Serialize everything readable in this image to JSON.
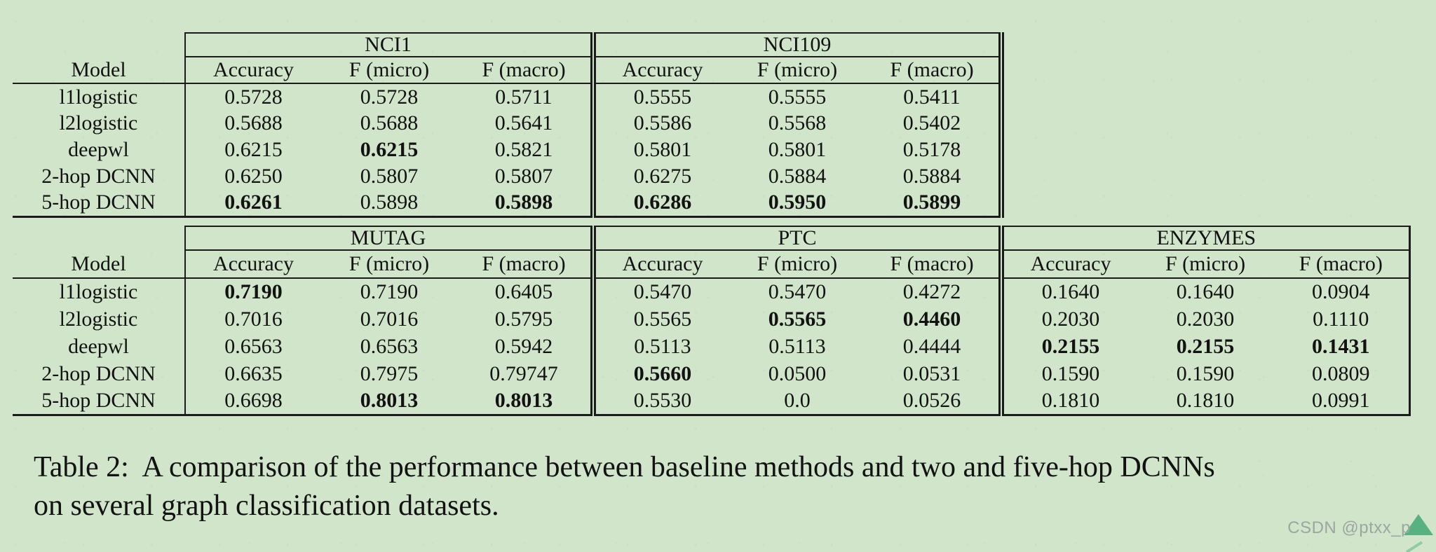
{
  "page": {
    "background_color": "#d1e5cb",
    "rule_color": "#1b1b1b",
    "text_color": "#121212"
  },
  "table": {
    "model_header": "Model",
    "stat_headers": [
      "Accuracy",
      "F (micro)",
      "F (macro)"
    ],
    "models": [
      "l1logistic",
      "l2logistic",
      "deepwl",
      "2-hop DCNN",
      "5-hop DCNN"
    ],
    "top_sections": [
      {
        "name": "NCI1",
        "values": [
          [
            "0.5728",
            "0.5728",
            "0.5711"
          ],
          [
            "0.5688",
            "0.5688",
            "0.5641"
          ],
          [
            "0.6215",
            "0.6215",
            "0.5821"
          ],
          [
            "0.6250",
            "0.5807",
            "0.5807"
          ],
          [
            "0.6261",
            "0.5898",
            "0.5898"
          ]
        ],
        "bold": [
          [
            false,
            false,
            false
          ],
          [
            false,
            false,
            false
          ],
          [
            false,
            true,
            false
          ],
          [
            false,
            false,
            false
          ],
          [
            true,
            false,
            true
          ]
        ]
      },
      {
        "name": "NCI109",
        "values": [
          [
            "0.5555",
            "0.5555",
            "0.5411"
          ],
          [
            "0.5586",
            "0.5568",
            "0.5402"
          ],
          [
            "0.5801",
            "0.5801",
            "0.5178"
          ],
          [
            "0.6275",
            "0.5884",
            "0.5884"
          ],
          [
            "0.6286",
            "0.5950",
            "0.5899"
          ]
        ],
        "bold": [
          [
            false,
            false,
            false
          ],
          [
            false,
            false,
            false
          ],
          [
            false,
            false,
            false
          ],
          [
            false,
            false,
            false
          ],
          [
            true,
            true,
            true
          ]
        ]
      }
    ],
    "bottom_sections": [
      {
        "name": "MUTAG",
        "values": [
          [
            "0.7190",
            "0.7190",
            "0.6405"
          ],
          [
            "0.7016",
            "0.7016",
            "0.5795"
          ],
          [
            "0.6563",
            "0.6563",
            "0.5942"
          ],
          [
            "0.6635",
            "0.7975",
            "0.79747"
          ],
          [
            "0.6698",
            "0.8013",
            "0.8013"
          ]
        ],
        "bold": [
          [
            true,
            false,
            false
          ],
          [
            false,
            false,
            false
          ],
          [
            false,
            false,
            false
          ],
          [
            false,
            false,
            false
          ],
          [
            false,
            true,
            true
          ]
        ]
      },
      {
        "name": "PTC",
        "values": [
          [
            "0.5470",
            "0.5470",
            "0.4272"
          ],
          [
            "0.5565",
            "0.5565",
            "0.4460"
          ],
          [
            "0.5113",
            "0.5113",
            "0.4444"
          ],
          [
            "0.5660",
            "0.0500",
            "0.0531"
          ],
          [
            "0.5530",
            "0.0",
            "0.0526"
          ]
        ],
        "bold": [
          [
            false,
            false,
            false
          ],
          [
            false,
            true,
            true
          ],
          [
            false,
            false,
            false
          ],
          [
            true,
            false,
            false
          ],
          [
            false,
            false,
            false
          ]
        ]
      },
      {
        "name": "ENZYMES",
        "values": [
          [
            "0.1640",
            "0.1640",
            "0.0904"
          ],
          [
            "0.2030",
            "0.2030",
            "0.1110"
          ],
          [
            "0.2155",
            "0.2155",
            "0.1431"
          ],
          [
            "0.1590",
            "0.1590",
            "0.0809"
          ],
          [
            "0.1810",
            "0.1810",
            "0.0991"
          ]
        ],
        "bold": [
          [
            false,
            false,
            false
          ],
          [
            false,
            false,
            false
          ],
          [
            true,
            true,
            true
          ],
          [
            false,
            false,
            false
          ],
          [
            false,
            false,
            false
          ]
        ]
      }
    ]
  },
  "caption": {
    "line1": "Table 2:  A comparison of the performance between baseline methods and two and five-hop DCNNs",
    "line2": "on several graph classification datasets."
  },
  "watermark": {
    "text": "CSDN @ptxx_p",
    "text_color": "#9ca6a1",
    "logo_color": "#57b181",
    "logo_tail_color": "#8fcba6"
  }
}
